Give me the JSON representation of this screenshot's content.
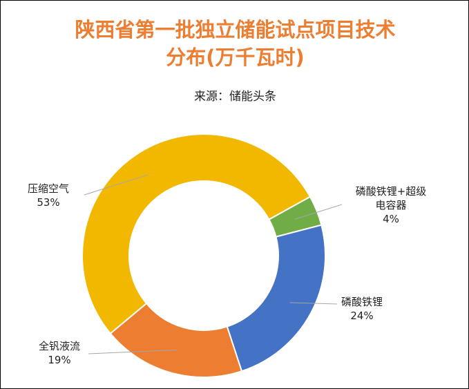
{
  "chart_data": {
    "type": "pie",
    "donut": true,
    "title_line1": "陕西省第一批独立储能试点项目技术",
    "title_line2": "分布(万千瓦时)",
    "subtitle": "来源：储能头条",
    "slices": [
      {
        "label_lines": [
          "磷酸铁锂+超级",
          "电容器"
        ],
        "value": 4,
        "pct_label": "4%",
        "color": "#70AD47"
      },
      {
        "label_lines": [
          "磷酸铁锂"
        ],
        "value": 24,
        "pct_label": "24%",
        "color": "#4472C4"
      },
      {
        "label_lines": [
          "全钒液流"
        ],
        "value": 19,
        "pct_label": "19%",
        "color": "#ED7D31"
      },
      {
        "label_lines": [
          "压缩空气"
        ],
        "value": 53,
        "pct_label": "53%",
        "color": "#F2B800"
      }
    ]
  }
}
